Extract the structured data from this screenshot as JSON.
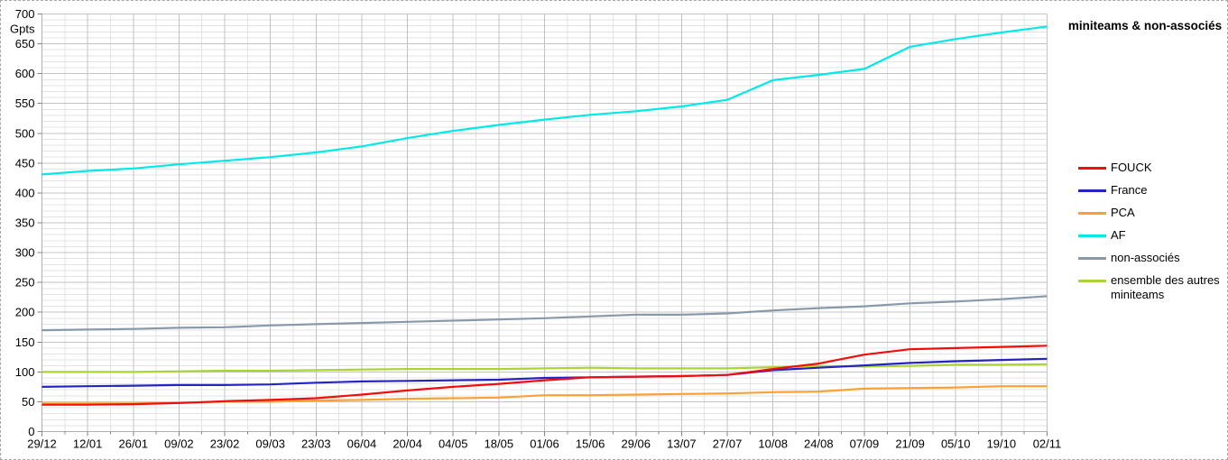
{
  "title": "miniteams & non-associés",
  "chart_data": {
    "type": "line",
    "title": "miniteams & non-associés",
    "xlabel": "",
    "ylabel": "Gpts",
    "ylim": [
      0,
      700
    ],
    "y_major_step": 50,
    "y_minor_step": 10,
    "grid": true,
    "legend_position": "right",
    "y_tick_labels": [
      "0",
      "50",
      "100",
      "150",
      "200",
      "250",
      "300",
      "350",
      "400",
      "450",
      "500",
      "550",
      "600",
      "650",
      "700"
    ],
    "categories": [
      "29/12",
      "12/01",
      "26/01",
      "09/02",
      "23/02",
      "09/03",
      "23/03",
      "06/04",
      "20/04",
      "04/05",
      "18/05",
      "01/06",
      "15/06",
      "29/06",
      "13/07",
      "27/07",
      "10/08",
      "24/08",
      "07/09",
      "21/09",
      "05/10",
      "19/10",
      "02/11"
    ],
    "series": [
      {
        "name": "FOUCK",
        "color": "#f20d0d",
        "values": [
          45,
          45,
          46,
          48,
          51,
          53,
          56,
          62,
          69,
          75,
          80,
          86,
          91,
          92,
          93,
          95,
          105,
          114,
          129,
          138,
          140,
          142,
          144
        ]
      },
      {
        "name": "France",
        "color": "#2424c4",
        "values": [
          75,
          76,
          77,
          78,
          78,
          79,
          82,
          84,
          85,
          86,
          87,
          90,
          91,
          92,
          93,
          95,
          103,
          107,
          111,
          115,
          118,
          120,
          122
        ]
      },
      {
        "name": "PCA",
        "color": "#ffa033",
        "values": [
          47,
          47,
          47,
          48,
          50,
          50,
          52,
          53,
          55,
          56,
          57,
          61,
          61,
          62,
          63,
          64,
          66,
          67,
          72,
          73,
          74,
          76,
          76
        ]
      },
      {
        "name": "AF",
        "color": "#00e9e9",
        "values": [
          431,
          437,
          441,
          448,
          454,
          460,
          468,
          478,
          492,
          504,
          514,
          523,
          531,
          537,
          545,
          556,
          589,
          598,
          608,
          645,
          658,
          669,
          679
        ]
      },
      {
        "name": "non-associés",
        "color": "#8899aa",
        "values": [
          170,
          171,
          172,
          174,
          175,
          178,
          180,
          182,
          184,
          186,
          188,
          190,
          193,
          196,
          196,
          198,
          203,
          207,
          210,
          215,
          218,
          222,
          227
        ]
      },
      {
        "name": "ensemble des autres miniteams",
        "color": "#aad435",
        "values": [
          100,
          100,
          100,
          101,
          102,
          102,
          103,
          104,
          105,
          105,
          105,
          106,
          107,
          106,
          106,
          106,
          108,
          110,
          109,
          110,
          112,
          112,
          113
        ]
      }
    ]
  },
  "colors": {
    "grid_major": "#c3c3c3",
    "grid_minor": "#e3e3e3",
    "axis": "#b0b0b0",
    "tick": "#808080",
    "text": "#000000"
  }
}
